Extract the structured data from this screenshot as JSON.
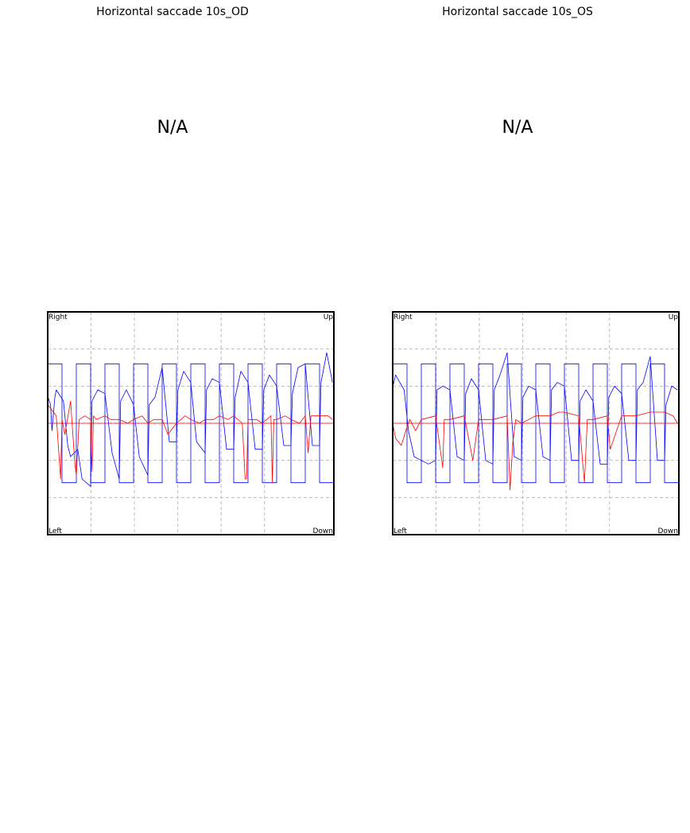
{
  "panels": [
    {
      "title": "Horizontal saccade 10s_OD",
      "top_message": "N/A",
      "corner_labels": {
        "top_left": "Right",
        "top_right": "Up",
        "bottom_left": "Left",
        "bottom_right": "Down"
      }
    },
    {
      "title": "Horizontal saccade 10s_OS",
      "top_message": "N/A",
      "corner_labels": {
        "top_left": "Right",
        "top_right": "Up",
        "bottom_left": "Left",
        "bottom_right": "Down"
      }
    }
  ],
  "chart_data": [
    {
      "type": "line",
      "title": "Horizontal saccade 10s_OD",
      "xlim": [
        0,
        10
      ],
      "ylim": [
        -3,
        3
      ],
      "grid": true,
      "corner_labels": [
        "Right",
        "Up",
        "Left",
        "Down"
      ],
      "series": [
        {
          "color": "#0000ff",
          "x": [
            0,
            0.01,
            0.1,
            0.15,
            0.25,
            0.3,
            0.55,
            0.7,
            0.8,
            1.05,
            1.2,
            1.5,
            1.55,
            1.75,
            2.0,
            2.25,
            2.5,
            2.55,
            2.75,
            3.0,
            3.2,
            3.5,
            3.55,
            3.75,
            4.0,
            4.25,
            4.5,
            4.55,
            4.75,
            5.0,
            5.2,
            5.5,
            5.55,
            5.75,
            6.0,
            6.25,
            6.5,
            6.55,
            6.75,
            7.0,
            7.25,
            7.5,
            7.55,
            7.75,
            8.0,
            8.25,
            8.5,
            8.55,
            8.75,
            9.0,
            9.25,
            9.5,
            9.55,
            9.75,
            9.95
          ],
          "y": [
            -2.4,
            0.7,
            0.5,
            -0.2,
            0.7,
            0.9,
            0.6,
            -0.6,
            -0.9,
            -0.7,
            -1.5,
            -1.7,
            0.6,
            0.9,
            0.8,
            -0.8,
            -1.5,
            0.6,
            0.9,
            0.5,
            -0.9,
            -1.4,
            0.5,
            0.7,
            1.5,
            -0.5,
            -0.5,
            0.9,
            1.4,
            1.1,
            -0.5,
            -0.8,
            0.9,
            1.2,
            1.1,
            -0.7,
            -0.7,
            0.7,
            1.4,
            1.1,
            -0.7,
            -0.7,
            0.9,
            1.3,
            1.0,
            -0.6,
            -0.6,
            0.8,
            1.5,
            1.6,
            -0.6,
            -0.6,
            1.1,
            1.9,
            1.1
          ]
        },
        {
          "color": "#0000ff",
          "x": [
            0,
            0.5,
            0.5,
            1.0,
            1.0,
            1.5,
            1.5,
            2.0,
            2.0,
            2.5,
            2.5,
            3.0,
            3.0,
            3.5,
            3.5,
            4.0,
            4.0,
            4.5,
            4.5,
            5.0,
            5.0,
            5.5,
            5.5,
            6.0,
            6.0,
            6.5,
            6.5,
            7.0,
            7.0,
            7.5,
            7.5,
            8.0,
            8.0,
            8.5,
            8.5,
            9.0,
            9.0,
            9.5,
            9.5,
            10.0
          ],
          "y": [
            1.6,
            1.6,
            -1.6,
            -1.6,
            1.6,
            1.6,
            -1.6,
            -1.6,
            1.6,
            1.6,
            -1.6,
            -1.6,
            1.6,
            1.6,
            -1.6,
            -1.6,
            1.6,
            1.6,
            -1.6,
            -1.6,
            1.6,
            1.6,
            -1.6,
            -1.6,
            1.6,
            1.6,
            -1.6,
            -1.6,
            1.6,
            1.6,
            -1.6,
            -1.6,
            1.6,
            1.6,
            -1.6,
            -1.6,
            1.6,
            1.6,
            -1.6,
            -1.6
          ]
        },
        {
          "color": "#ff0000",
          "x": [
            0,
            0.1,
            0.3,
            0.45,
            0.5,
            0.6,
            0.8,
            0.95,
            1.0,
            1.1,
            1.3,
            1.5,
            1.55,
            1.6,
            1.7,
            2.0,
            2.2,
            2.5,
            2.8,
            3.0,
            3.3,
            3.5,
            3.7,
            4.0,
            4.2,
            4.5,
            4.8,
            5.0,
            5.3,
            5.5,
            5.8,
            6.0,
            6.3,
            6.5,
            6.8,
            6.9,
            6.95,
            7.0,
            7.3,
            7.5,
            7.8,
            7.85,
            7.9,
            8.0,
            8.3,
            8.5,
            8.8,
            9.0,
            9.1,
            9.2,
            9.5,
            9.8,
            9.95
          ],
          "y": [
            0.5,
            0.4,
            0.2,
            -1.5,
            0.1,
            -0.3,
            0.6,
            -1.1,
            -1.4,
            0.1,
            0.2,
            0.1,
            -1.3,
            0.2,
            0.1,
            0.2,
            0.1,
            0.1,
            0.0,
            0.1,
            0.2,
            0.0,
            0.1,
            0.1,
            -0.3,
            0.0,
            0.2,
            0.1,
            0.0,
            0.1,
            0.1,
            0.2,
            0.1,
            0.2,
            0.0,
            -1.5,
            -1.5,
            0.1,
            0.1,
            0.0,
            0.2,
            -1.6,
            0.1,
            0.1,
            0.2,
            0.1,
            0.0,
            0.2,
            -0.8,
            0.2,
            0.2,
            0.2,
            0.1
          ]
        },
        {
          "color": "#ff0000",
          "x": [
            0,
            10
          ],
          "y": [
            0,
            0
          ]
        }
      ]
    },
    {
      "type": "line",
      "title": "Horizontal saccade 10s_OS",
      "xlim": [
        0,
        10
      ],
      "ylim": [
        -3,
        3
      ],
      "grid": true,
      "corner_labels": [
        "Right",
        "Up",
        "Left",
        "Down"
      ],
      "series": [
        {
          "color": "#0000ff",
          "x": [
            0,
            0.01,
            0.1,
            0.25,
            0.4,
            0.55,
            0.75,
            1.0,
            1.25,
            1.5,
            1.55,
            1.75,
            2.0,
            2.25,
            2.5,
            2.55,
            2.75,
            3.0,
            3.25,
            3.5,
            3.55,
            3.75,
            4.0,
            4.25,
            4.5,
            4.55,
            4.75,
            5.0,
            5.25,
            5.5,
            5.55,
            5.75,
            6.0,
            6.25,
            6.5,
            6.55,
            6.75,
            7.0,
            7.25,
            7.5,
            7.55,
            7.75,
            8.0,
            8.25,
            8.5,
            8.55,
            8.75,
            9.0,
            9.25,
            9.5,
            9.55,
            9.75,
            9.95
          ],
          "y": [
            -2.9,
            1.0,
            1.3,
            1.1,
            0.9,
            -0.2,
            -0.9,
            -1.0,
            -1.1,
            -1.0,
            0.9,
            1.0,
            0.9,
            -0.9,
            -1.0,
            0.8,
            1.2,
            0.9,
            -1.0,
            -1.1,
            0.9,
            1.3,
            1.9,
            -0.9,
            -1.0,
            0.7,
            1.0,
            0.9,
            -0.9,
            -1.0,
            0.9,
            1.1,
            1.0,
            -1.0,
            -1.0,
            0.6,
            0.9,
            0.6,
            -1.1,
            -1.1,
            0.7,
            1.0,
            0.8,
            -1.0,
            -1.0,
            0.9,
            1.1,
            1.8,
            -1.0,
            -1.0,
            0.5,
            1.0,
            0.9
          ]
        },
        {
          "color": "#0000ff",
          "x": [
            0,
            0.5,
            0.5,
            1.0,
            1.0,
            1.5,
            1.5,
            2.0,
            2.0,
            2.5,
            2.5,
            3.0,
            3.0,
            3.5,
            3.5,
            4.0,
            4.0,
            4.5,
            4.5,
            5.0,
            5.0,
            5.5,
            5.5,
            6.0,
            6.0,
            6.5,
            6.5,
            7.0,
            7.0,
            7.5,
            7.5,
            8.0,
            8.0,
            8.5,
            8.5,
            9.0,
            9.0,
            9.5,
            9.5,
            10.0
          ],
          "y": [
            1.6,
            1.6,
            -1.6,
            -1.6,
            1.6,
            1.6,
            -1.6,
            -1.6,
            1.6,
            1.6,
            -1.6,
            -1.6,
            1.6,
            1.6,
            -1.6,
            -1.6,
            1.6,
            1.6,
            -1.6,
            -1.6,
            1.6,
            1.6,
            -1.6,
            -1.6,
            1.6,
            1.6,
            -1.6,
            -1.6,
            1.6,
            1.6,
            -1.6,
            -1.6,
            1.6,
            1.6,
            -1.6,
            -1.6,
            1.6,
            1.6,
            -1.6,
            -1.6
          ]
        },
        {
          "color": "#ff0000",
          "x": [
            0,
            0.1,
            0.3,
            0.5,
            0.6,
            0.8,
            1.0,
            1.5,
            1.75,
            1.8,
            2.0,
            2.5,
            2.8,
            3.0,
            3.5,
            4.0,
            4.1,
            4.2,
            4.3,
            4.5,
            5.0,
            5.5,
            5.8,
            6.0,
            6.5,
            6.7,
            6.8,
            7.0,
            7.5,
            7.6,
            8.0,
            8.5,
            9.0,
            9.5,
            9.8,
            9.95
          ],
          "y": [
            0.0,
            -0.4,
            -0.6,
            -0.1,
            0.1,
            -0.2,
            0.1,
            0.2,
            -1.2,
            0.1,
            0.1,
            0.2,
            -1.0,
            0.1,
            0.1,
            0.2,
            -1.8,
            -0.5,
            0.1,
            0.0,
            0.2,
            0.2,
            0.3,
            0.3,
            0.2,
            -1.6,
            0.1,
            0.1,
            0.2,
            -0.7,
            0.2,
            0.2,
            0.3,
            0.3,
            0.2,
            0.0
          ]
        },
        {
          "color": "#ff0000",
          "x": [
            0,
            10
          ],
          "y": [
            0,
            0
          ]
        }
      ]
    }
  ]
}
